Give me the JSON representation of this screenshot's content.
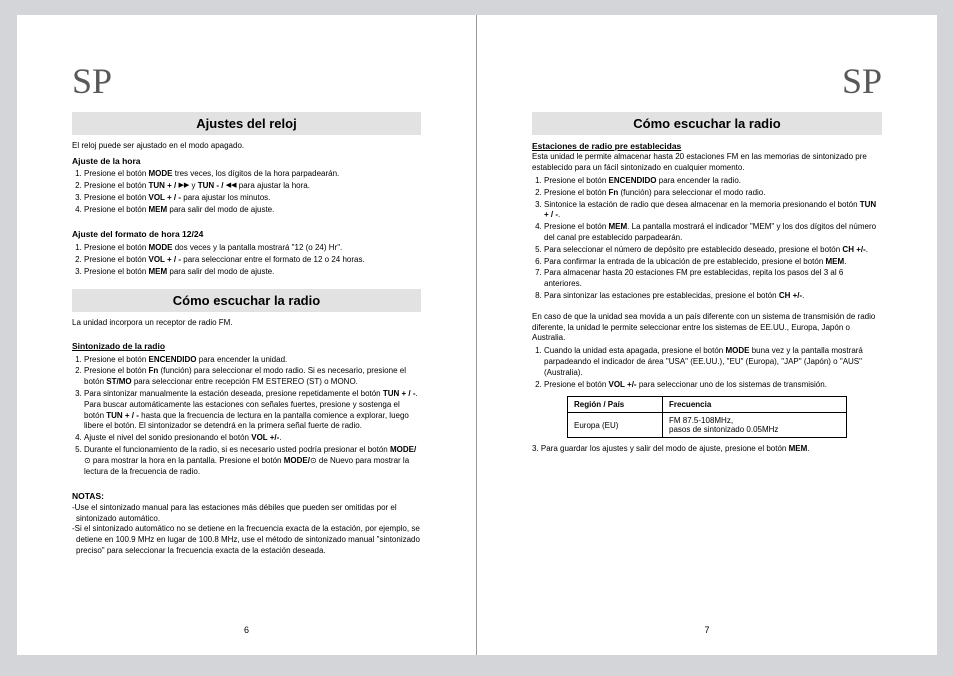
{
  "lang_marker": "SP",
  "left": {
    "section1_title": "Ajustes del reloj",
    "intro1": "El reloj puede ser ajustado en el modo apagado.",
    "sub1": "Ajuste de la hora",
    "list1": [
      "Presione el botón <b>MODE</b> tres veces, los dígitos de la hora parpadearán.",
      "Presione el botón <b>TUN + /</b> <span class='icon'>▶▶</span> y <b>TUN - /</b> <span class='icon'>◀◀</span> para ajustar la hora.",
      "Presione el botón <b>VOL + / -</b> para ajustar los minutos.",
      "Presione el botón <b>MEM</b> para salir del modo de ajuste."
    ],
    "sub2": "Ajuste del formato de hora 12/24",
    "list2": [
      "Presione el botón <b>MODE</b> dos veces y la pantalla mostrará \"12 (o 24) Hr\".",
      "Presione el botón <b>VOL + / -</b> para seleccionar entre el formato de 12 o 24 horas.",
      "Presione el botón <b>MEM</b> para salir del modo de ajuste."
    ],
    "section2_title": "Cómo escuchar la radio",
    "intro2": "La unidad incorpora un receptor de radio FM.",
    "sub3": "Sintonizado de la radio",
    "list3": [
      "Presione el botón <b>ENCENDIDO</b> para encender la unidad.",
      "Presione el botón <b>Fn</b> (función) para seleccionar el modo radio. Si es necesario, presione el botón <b>ST/MO</b> para seleccionar entre recepción FM ESTEREO (ST) o MONO.",
      "Para sintonizar manualmente la estación deseada, presione repetidamente el botón <b>TUN + / -</b>. Para buscar automáticamente las estaciones con señales fuertes, presione y sostenga el botón <b>TUN + / -</b> hasta que la frecuencia de lectura en la pantalla comience a explorar, luego libere el botón. El sintonizador se detendrá en la primera señal fuerte de radio.",
      "Ajuste el nivel del sonido presionando el botón <b>VOL +/-</b>.",
      "Durante el funcionamiento de la radio, si es necesario usted podría presionar el botón <b>MODE/</b>⊙ para mostrar la hora en la pantalla. Presione el botón <b>MODE/</b>⊙ de Nuevo para mostrar la lectura de la frecuencia de radio."
    ],
    "notas_label": "NOTAS:",
    "nota1": "-Use el sintonizado manual para las estaciones más débiles que pueden ser omitidas por el sintonizado automático.",
    "nota2": "-Si el sintonizado automático no se detiene en la frecuencia exacta de la estación, por ejemplo, se detiene en 100.9 MHz en lugar de 100.8 MHz, use el método de sintonizado manual \"sintonizado preciso\" para seleccionar la frecuencia exacta de la estación deseada.",
    "pagenum": "6"
  },
  "right": {
    "section_title": "Cómo escuchar la radio",
    "sub1": "Estaciones de radio pre establecidas",
    "intro": "Esta unidad le permite almacenar hasta 20 estaciones FM en las memorias de sintonizado pre establecido para un fácil sintonizado en cualquier momento.",
    "list1": [
      "Presione el botón <b>ENCENDIDO</b> para encender la radio.",
      "Presione el botón <b>Fn</b> (función) para seleccionar el modo radio.",
      "Sintonice la estación de radio que desea almacenar en la memoria presionando el botón <b>TUN + / -</b>.",
      "Presione el botón <b>MEM</b>. La pantalla mostrará el indicador \"MEM\" y los dos dígitos del número del canal pre establecido parpadearán.",
      "Para seleccionar el número de depósito pre establecido deseado, presione el botón <b>CH +/-</b>.",
      "Para confirmar la entrada de la ubicación de pre establecido, presione el botón <b>MEM</b>.",
      "Para almacenar hasta 20 estaciones FM pre establecidas, repita los pasos del 3 al 6 anteriores.",
      "Para sintonizar las estaciones pre establecidas, presione el botón <b>CH +/-</b>."
    ],
    "para2": "En caso de que la unidad sea movida a un país diferente con un sistema de transmisión de radio diferente, la unidad le permite seleccionar entre los sistemas de EE.UU., Europa, Japón o Australia.",
    "list2": [
      "Cuando la unidad esta apagada, presione el botón <b>MODE</b> buna vez y la pantalla mostrará parpadeando el indicador de área \"USA\" (EE.UU.), \"EU\" (Europa), \"JAP\" (Japón) o \"AUS\" (Australia).",
      "Presione el botón <b>VOL +/-</b> para seleccionar uno de los sistemas de transmisión."
    ],
    "table": {
      "header_region": "Región / País",
      "header_freq": "Frecuencia",
      "row_region": "Europa (EU)",
      "row_freq": "FM 87.5-108MHz,\npasos de sintonizado 0.05MHz"
    },
    "step3": "3. Para guardar los ajustes y salir del modo de ajuste, presione el botón <b>MEM</b>.",
    "pagenum": "7"
  }
}
